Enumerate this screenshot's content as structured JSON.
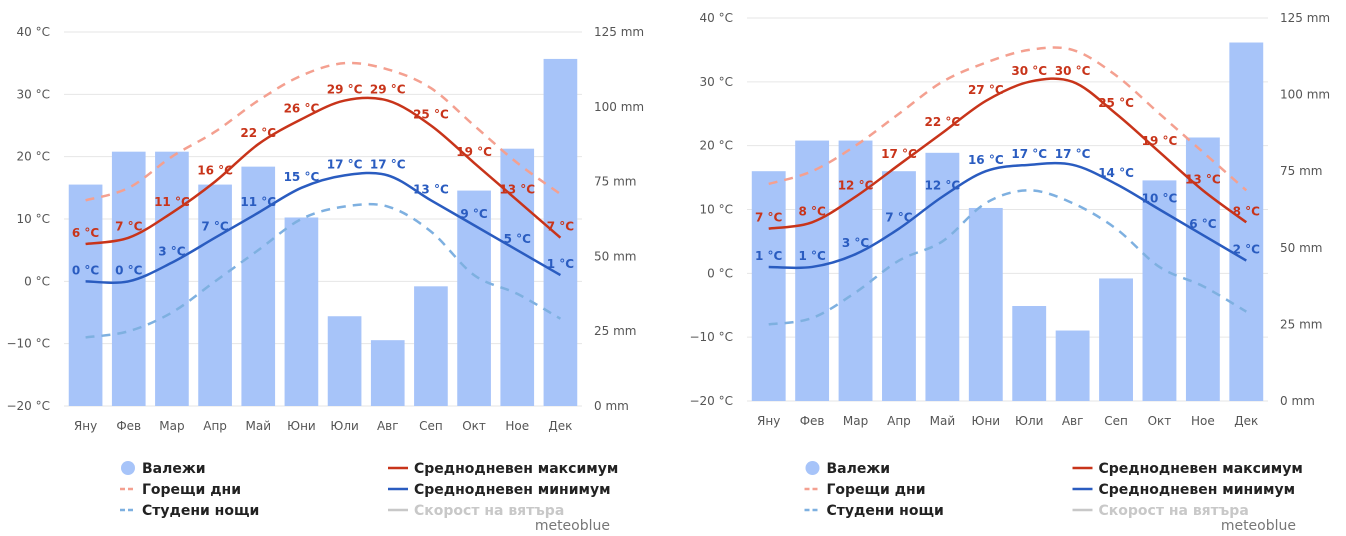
{
  "charts": [
    {
      "credit": "meteoblue",
      "y_left_ticks": [
        "40 °C",
        "30 °C",
        "20 °C",
        "10 °C",
        "0 °C",
        "−10 °C",
        "−20 °C"
      ],
      "y_right_ticks": [
        "125 mm",
        "100 mm",
        "75 mm",
        "50 mm",
        "25 mm",
        "0 mm"
      ],
      "legend": {
        "precip": "Валежи",
        "hot_days": "Горещи дни",
        "cold_nights": "Студени нощи",
        "max": "Среднодневен максимум",
        "min": "Среднодневен минимум",
        "wind": "Скорост на вятъра"
      }
    },
    {
      "credit": "meteoblue",
      "y_left_ticks": [
        "40 °C",
        "30 °C",
        "20 °C",
        "10 °C",
        "0 °C",
        "−10 °C",
        "−20 °C"
      ],
      "y_right_ticks": [
        "125 mm",
        "100 mm",
        "75 mm",
        "50 mm",
        "25 mm",
        "0 mm"
      ],
      "legend": {
        "precip": "Валежи",
        "hot_days": "Горещи дни",
        "cold_nights": "Студени нощи",
        "max": "Среднодневен максимум",
        "min": "Среднодневен минимум",
        "wind": "Скорост на вятъра"
      }
    }
  ],
  "chart_data": [
    {
      "type": "bar",
      "categories": [
        "Яну",
        "Фев",
        "Мар",
        "Апр",
        "Май",
        "Юни",
        "Юли",
        "Авг",
        "Сеп",
        "Окт",
        "Ное",
        "Дек"
      ],
      "ylim": [
        -20,
        40
      ],
      "y2lim": [
        0,
        125
      ],
      "grid": true,
      "legend_position": "bottom",
      "series": [
        {
          "name": "Валежи",
          "kind": "bar",
          "axis": "right",
          "color": "#a7c4f9",
          "values": [
            74,
            85,
            85,
            74,
            80,
            63,
            30,
            22,
            40,
            72,
            86,
            116
          ]
        },
        {
          "name": "Среднодневен максимум",
          "kind": "line",
          "axis": "left",
          "color": "#c8341a",
          "values": [
            6,
            7,
            11,
            16,
            22,
            26,
            29,
            29,
            25,
            19,
            13,
            7
          ],
          "labels": [
            "6 °C",
            "7 °C",
            "11 °C",
            "16 °C",
            "22 °C",
            "26 °C",
            "29 °C",
            "29 °C",
            "25 °C",
            "19 °C",
            "13 °C",
            "7 °C"
          ]
        },
        {
          "name": "Среднодневен минимум",
          "kind": "line",
          "axis": "left",
          "color": "#2a5cc0",
          "values": [
            0,
            0,
            3,
            7,
            11,
            15,
            17,
            17,
            13,
            9,
            5,
            1
          ],
          "labels": [
            "0 °C",
            "0 °C",
            "3 °C",
            "7 °C",
            "11 °C",
            "15 °C",
            "17 °C",
            "17 °C",
            "13 °C",
            "9 °C",
            "5 °C",
            "1 °C"
          ]
        },
        {
          "name": "Горещи дни",
          "kind": "dashed",
          "axis": "left",
          "color": "#f4a090",
          "values": [
            13,
            15,
            20,
            24,
            29,
            33,
            35,
            34,
            31,
            25,
            19,
            14
          ]
        },
        {
          "name": "Студени нощи",
          "kind": "dashed",
          "axis": "left",
          "color": "#7eb0e0",
          "values": [
            -9,
            -8,
            -5,
            0,
            5,
            10,
            12,
            12,
            8,
            1,
            -2,
            -6
          ]
        }
      ]
    },
    {
      "type": "bar",
      "categories": [
        "Яну",
        "Фев",
        "Мар",
        "Апр",
        "Май",
        "Юни",
        "Юли",
        "Авг",
        "Сеп",
        "Окт",
        "Ное",
        "Дек"
      ],
      "ylim": [
        -20,
        40
      ],
      "y2lim": [
        0,
        125
      ],
      "grid": true,
      "legend_position": "bottom",
      "series": [
        {
          "name": "Валежи",
          "kind": "bar",
          "axis": "right",
          "color": "#a7c4f9",
          "values": [
            75,
            85,
            85,
            75,
            81,
            63,
            31,
            23,
            40,
            72,
            86,
            117
          ]
        },
        {
          "name": "Среднодневен максимум",
          "kind": "line",
          "axis": "left",
          "color": "#c8341a",
          "values": [
            7,
            8,
            12,
            17,
            22,
            27,
            30,
            30,
            25,
            19,
            13,
            8
          ],
          "labels": [
            "7 °C",
            "8 °C",
            "12 °C",
            "17 °C",
            "22 °C",
            "27 °C",
            "30 °C",
            "30 °C",
            "25 °C",
            "19 °C",
            "13 °C",
            "8 °C"
          ]
        },
        {
          "name": "Среднодневен минимум",
          "kind": "line",
          "axis": "left",
          "color": "#2a5cc0",
          "values": [
            1,
            1,
            3,
            7,
            12,
            16,
            17,
            17,
            14,
            10,
            6,
            2
          ],
          "labels": [
            "1 °C",
            "1 °C",
            "3 °C",
            "7 °C",
            "12 °C",
            "16 °C",
            "17 °C",
            "17 °C",
            "14 °C",
            "10 °C",
            "6 °C",
            "2 °C"
          ]
        },
        {
          "name": "Горещи дни",
          "kind": "dashed",
          "axis": "left",
          "color": "#f4a090",
          "values": [
            14,
            16,
            20,
            25,
            30,
            33,
            35,
            35,
            31,
            25,
            19,
            13
          ]
        },
        {
          "name": "Студени нощи",
          "kind": "dashed",
          "axis": "left",
          "color": "#7eb0e0",
          "values": [
            -8,
            -7,
            -3,
            2,
            5,
            11,
            13,
            11,
            7,
            1,
            -2,
            -6
          ]
        }
      ]
    }
  ]
}
